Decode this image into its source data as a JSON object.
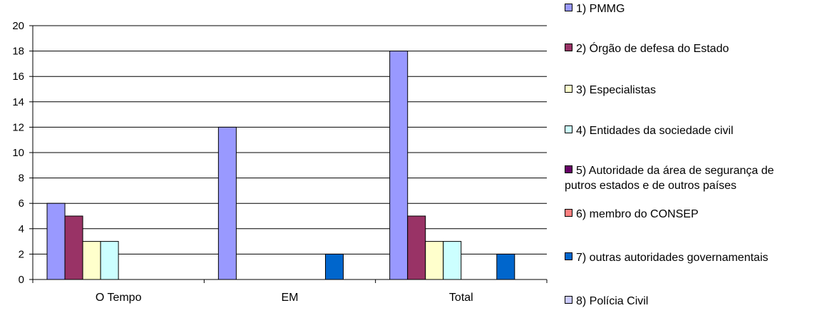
{
  "chart_data": {
    "type": "bar",
    "categories": [
      "O Tempo",
      "EM",
      "Total"
    ],
    "ylim": [
      0,
      20
    ],
    "yticks": [
      0,
      2,
      4,
      6,
      8,
      10,
      12,
      14,
      16,
      18,
      20
    ],
    "grid": true,
    "legend_position": "right",
    "series": [
      {
        "name": "1) PMMG",
        "color": "#9999FF",
        "values": [
          6,
          12,
          18
        ]
      },
      {
        "name": "2) Órgão de defesa do Estado",
        "color": "#993366",
        "values": [
          5,
          0,
          5
        ]
      },
      {
        "name": "3) Especialistas",
        "color": "#FFFFCC",
        "values": [
          3,
          0,
          3
        ]
      },
      {
        "name": "4) Entidades da sociedade civil",
        "color": "#CCFFFF",
        "values": [
          3,
          0,
          3
        ]
      },
      {
        "name": "5) Autoridade da área de segurança de putros estados e de outros países",
        "color": "#660066",
        "values": [
          0,
          0,
          0
        ]
      },
      {
        "name": "6) membro do CONSEP",
        "color": "#FF8080",
        "values": [
          0,
          0,
          0
        ]
      },
      {
        "name": "7) outras autoridades governamentais",
        "color": "#0066CC",
        "values": [
          0,
          2,
          2
        ]
      },
      {
        "name": "8) Polícia Civil",
        "color": "#CCCCFF",
        "values": [
          0,
          0,
          0
        ]
      }
    ]
  },
  "legend": {
    "items": [
      {
        "label": "1) PMMG",
        "color": "#9999FF"
      },
      {
        "label": "2) Órgão de defesa do Estado",
        "color": "#993366"
      },
      {
        "label": "3) Especialistas",
        "color": "#FFFFCC"
      },
      {
        "label": "4) Entidades da sociedade civil",
        "color": "#CCFFFF"
      },
      {
        "label": "5) Autoridade da área de segurança de\nputros estados e de outros países",
        "color": "#660066"
      },
      {
        "label": "6) membro do CONSEP",
        "color": "#FF8080"
      },
      {
        "label": "7) outras autoridades governamentais",
        "color": "#0066CC"
      },
      {
        "label": "8) Polícia Civil",
        "color": "#CCCCFF"
      }
    ]
  }
}
